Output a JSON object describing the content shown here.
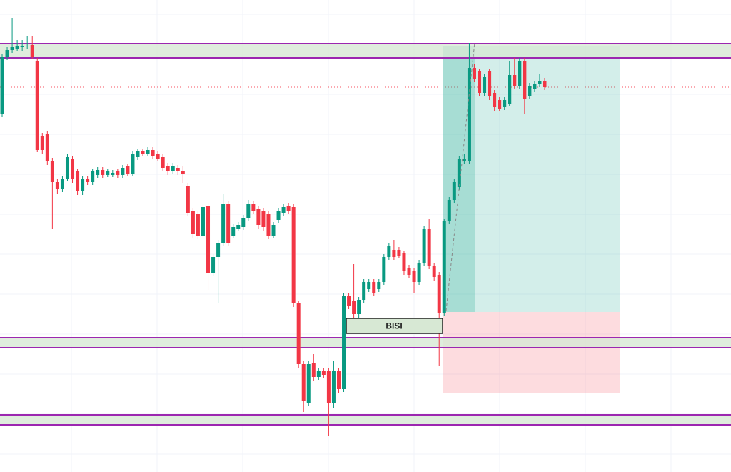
{
  "chart_data": {
    "type": "candlestick",
    "up_color": "#089981",
    "down_color": "#f23645",
    "ylim": [
      0,
      661
    ],
    "open": [
      501,
      581,
      591,
      593,
      595,
      596,
      598,
      576,
      471,
      473,
      436,
      406,
      396,
      411,
      439,
      421,
      393,
      411,
      406,
      416,
      423,
      416,
      416,
      421,
      416,
      428,
      418,
      441,
      449,
      446,
      451,
      446,
      441,
      429,
      421,
      426,
      421,
      401,
      366,
      361,
      331,
      373,
      279,
      301,
      321,
      376,
      331,
      341,
      343,
      356,
      376,
      369,
      366,
      361,
      331,
      353,
      363,
      373,
      371,
      236,
      151,
      96,
      153,
      133,
      141,
      141,
      96,
      141,
      116,
      246,
      239,
      221,
      241,
      256,
      266,
      256,
      266,
      301,
      311,
      311,
      306,
      286,
      281,
      266,
      293,
      341,
      289,
      276,
      223,
      351,
      381,
      399,
      436,
      436,
      566,
      561,
      531,
      561,
      531,
      521,
      511,
      516,
      556,
      541,
      576,
      526,
      536,
      543,
      548
    ],
    "high": [
      585,
      595,
      636,
      605,
      605,
      610,
      610,
      580,
      475,
      478,
      440,
      410,
      415,
      445,
      443,
      425,
      415,
      414,
      425,
      427,
      427,
      424,
      423,
      425,
      430,
      432,
      450,
      453,
      453,
      455,
      455,
      450,
      445,
      433,
      433,
      430,
      428,
      405,
      370,
      365,
      375,
      377,
      305,
      325,
      390,
      380,
      347,
      350,
      360,
      381,
      380,
      373,
      370,
      365,
      350,
      370,
      375,
      377,
      375,
      240,
      155,
      155,
      165,
      145,
      145,
      145,
      155,
      145,
      250,
      250,
      291,
      245,
      270,
      270,
      270,
      270,
      305,
      320,
      325,
      315,
      310,
      290,
      285,
      297,
      345,
      355,
      293,
      280,
      355,
      385,
      410,
      443,
      445,
      601,
      571,
      565,
      557,
      565,
      535,
      525,
      525,
      575,
      580,
      580,
      580,
      545,
      547,
      558,
      552
    ],
    "low": [
      497,
      577,
      587,
      589,
      590,
      592,
      578,
      448,
      445,
      430,
      341,
      390,
      392,
      407,
      405,
      388,
      388,
      402,
      402,
      412,
      412,
      413,
      413,
      412,
      412,
      414,
      414,
      437,
      442,
      442,
      439,
      435,
      421,
      416,
      417,
      416,
      405,
      358,
      328,
      326,
      327,
      255,
      275,
      237,
      317,
      316,
      327,
      337,
      339,
      352,
      361,
      341,
      338,
      326,
      327,
      349,
      359,
      361,
      231,
      146,
      84,
      92,
      128,
      129,
      131,
      50,
      90,
      110,
      112,
      228,
      216,
      212,
      237,
      252,
      246,
      252,
      262,
      297,
      297,
      299,
      276,
      271,
      251,
      262,
      289,
      284,
      268,
      149,
      218,
      347,
      377,
      395,
      432,
      432,
      546,
      526,
      527,
      521,
      506,
      505,
      507,
      512,
      536,
      537,
      502,
      522,
      532,
      539,
      535
    ],
    "close": [
      581,
      591,
      595,
      596,
      597,
      597,
      581,
      451,
      451,
      436,
      406,
      396,
      411,
      441,
      411,
      393,
      411,
      406,
      421,
      423,
      416,
      421,
      419,
      416,
      426,
      418,
      446,
      449,
      446,
      451,
      443,
      439,
      426,
      421,
      429,
      421,
      418,
      363,
      333,
      331,
      371,
      279,
      301,
      321,
      376,
      321,
      343,
      346,
      356,
      376,
      366,
      346,
      343,
      331,
      346,
      366,
      371,
      366,
      236,
      151,
      99,
      151,
      133,
      141,
      136,
      96,
      141,
      116,
      246,
      233,
      221,
      241,
      266,
      266,
      251,
      266,
      301,
      316,
      301,
      303,
      281,
      276,
      266,
      293,
      341,
      289,
      273,
      223,
      351,
      381,
      406,
      439,
      439,
      566,
      551,
      531,
      553,
      526,
      511,
      509,
      521,
      556,
      541,
      576,
      523,
      541,
      543,
      548,
      539
    ],
    "zones": [
      {
        "top": 600,
        "bottom": 580
      },
      {
        "top": 188,
        "bottom": 174
      },
      {
        "top": 80,
        "bottom": 66
      }
    ],
    "zone_fill": "#d7e8d4",
    "zone_line": "#9c27b0",
    "level": 539,
    "position": {
      "entry": 224,
      "target": 596,
      "stop": 111,
      "profit_color": "#22ab94",
      "loss_color": "#f7525f"
    },
    "annotation": {
      "text": "BISI",
      "top": 215,
      "bottom": 194
    }
  }
}
